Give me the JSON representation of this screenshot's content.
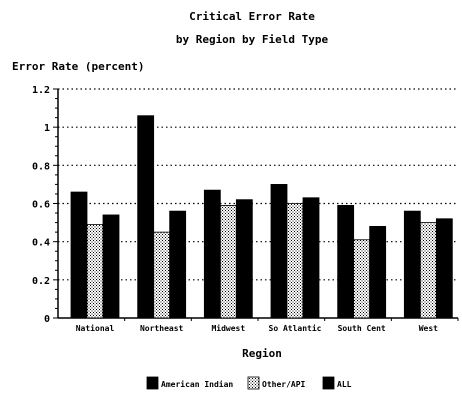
{
  "chart_data": {
    "type": "bar",
    "title": "Critical Error Rate",
    "subtitle": "by Region by Field Type",
    "xlabel": "Region",
    "ylabel": "Error Rate (percent)",
    "ylim": [
      0,
      1.2
    ],
    "yticks": [
      "0",
      "0.2",
      "0.4",
      "0.6",
      "0.8",
      "1",
      "1.2"
    ],
    "grid": "horizontal dotted",
    "legend_position": "bottom",
    "categories": [
      "National",
      "Northeast",
      "Midwest",
      "So Atlantic",
      "South Cent",
      "West"
    ],
    "series": [
      {
        "name": "American Indian",
        "pattern": "solid-black",
        "values": [
          0.66,
          1.06,
          0.67,
          0.7,
          0.59,
          0.56
        ]
      },
      {
        "name": "Other/API",
        "pattern": "crosshatch",
        "values": [
          0.49,
          0.45,
          0.59,
          0.6,
          0.41,
          0.5
        ]
      },
      {
        "name": "ALL",
        "pattern": "solid-black",
        "values": [
          0.54,
          0.56,
          0.62,
          0.63,
          0.48,
          0.52
        ]
      }
    ]
  }
}
